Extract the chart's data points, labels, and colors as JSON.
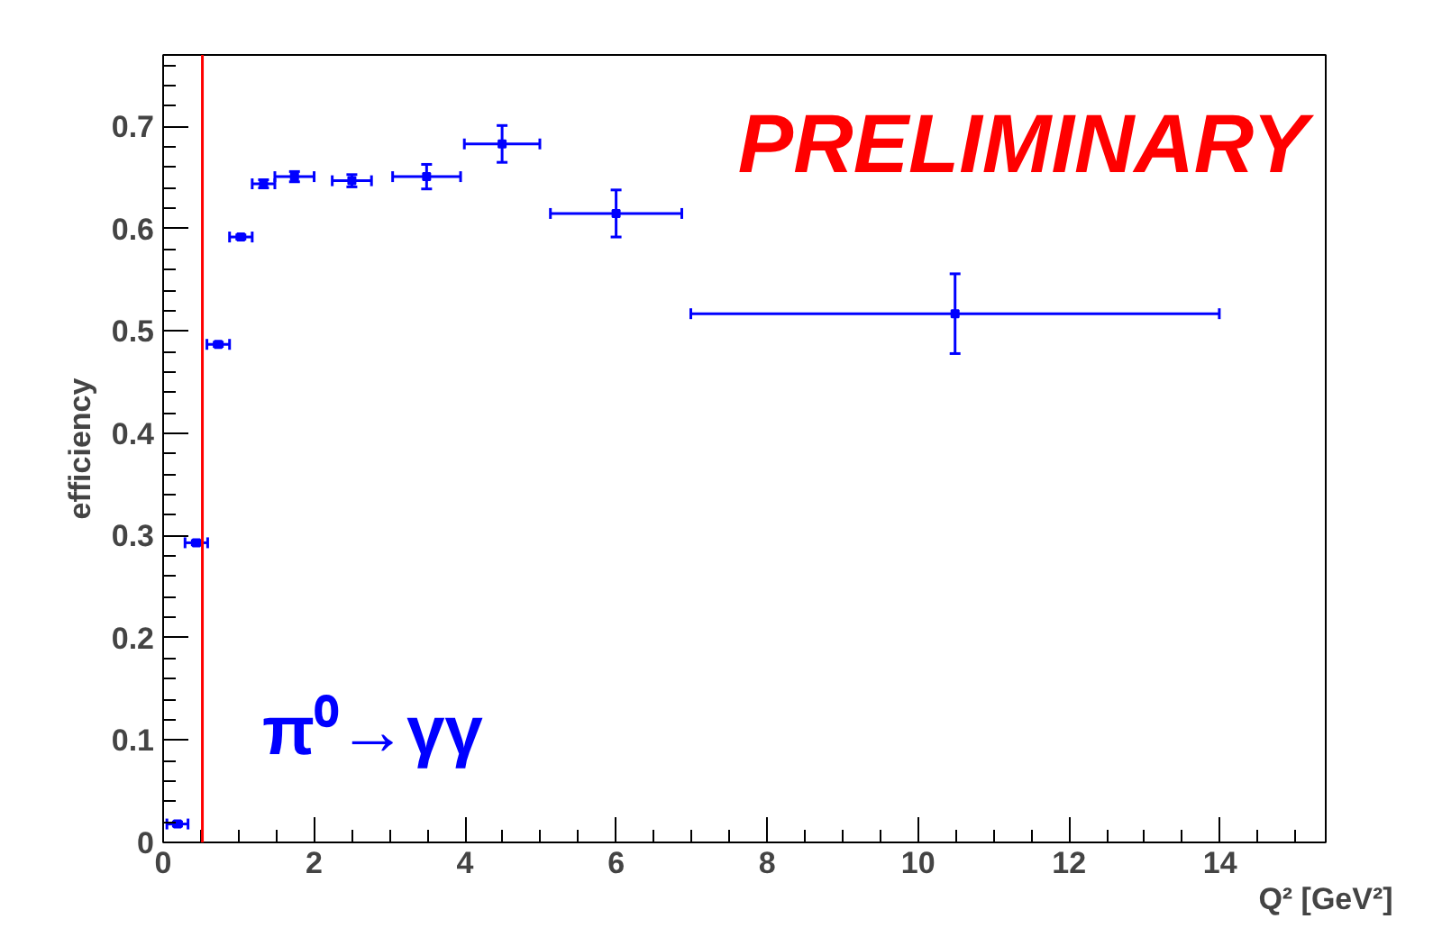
{
  "chart_data": {
    "type": "scatter",
    "xlabel": "Q² [GeV²]",
    "ylabel": "efficiency",
    "annotations": [
      "PRELIMINARY",
      "π⁰→γγ"
    ],
    "x": [
      0.19,
      0.44,
      0.73,
      1.03,
      1.33,
      1.74,
      2.5,
      3.49,
      4.49,
      6.0,
      10.49
    ],
    "series": [
      {
        "color": "#0000ff",
        "values": [
          0.018,
          0.293,
          0.487,
          0.592,
          0.644,
          0.651,
          0.647,
          0.651,
          0.683,
          0.615,
          0.517
        ],
        "errors": [
          0.002,
          0.002,
          0.002,
          0.002,
          0.004,
          0.005,
          0.006,
          0.012,
          0.018,
          0.023,
          0.039
        ],
        "xerrors": [
          0.14,
          0.15,
          0.15,
          0.15,
          0.15,
          0.26,
          0.26,
          0.45,
          0.5,
          0.87,
          3.5
        ]
      }
    ],
    "marker": "square",
    "xlim": [
      0,
      15.4
    ],
    "ylim": [
      0,
      0.77
    ],
    "xticks": [
      0,
      2,
      4,
      6,
      8,
      10,
      12,
      14
    ],
    "yticks": [
      0,
      0.1,
      0.2,
      0.3,
      0.4,
      0.5,
      0.6,
      0.7
    ],
    "ref_lines": [
      {
        "axis": "x",
        "value": 0.52,
        "color": "#ff0000"
      }
    ],
    "grid": false
  }
}
